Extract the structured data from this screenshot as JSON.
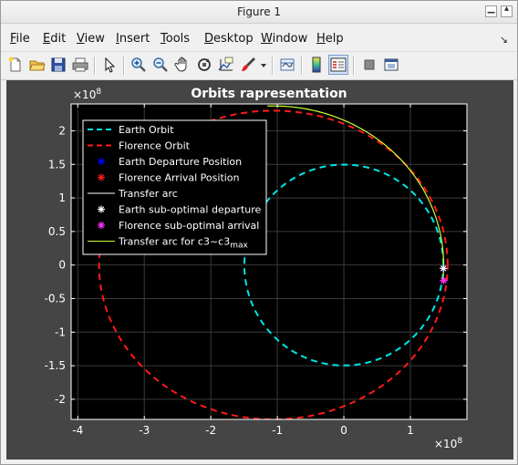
{
  "window": {
    "title": "Figure 1"
  },
  "menu": {
    "items": [
      "File",
      "Edit",
      "View",
      "Insert",
      "Tools",
      "Desktop",
      "Window",
      "Help"
    ]
  },
  "toolbar": {
    "icons": [
      "new-figure-icon",
      "open-file-icon",
      "save-icon",
      "print-icon",
      "pointer-icon",
      "zoom-in-icon",
      "zoom-out-icon",
      "pan-hand-icon",
      "rotate-3d-icon",
      "data-cursor-icon",
      "brush-icon",
      "dropdown-arrow-icon",
      "link-plot-icon",
      "colorbar-icon",
      "legend-icon",
      "hide-plot-tools-icon",
      "show-plot-tools-icon"
    ]
  },
  "colors": {
    "figure_bg": "#454545",
    "axes_bg": "#000000",
    "earth": "#00e5e5",
    "florence": "#ff1a1a",
    "transfer": "#ffffff",
    "transfer_c3max": "#ccff33"
  },
  "chart_data": {
    "type": "line",
    "title": "Orbits rapresentation",
    "xlabel": "",
    "ylabel": "",
    "x_exponent": "×10^8",
    "y_exponent": "×10^8",
    "xlim": [
      -4.1,
      1.85
    ],
    "ylim": [
      -2.3,
      2.4
    ],
    "xticks": [
      -4,
      -3,
      -2,
      -1,
      0,
      1
    ],
    "yticks": [
      -2,
      -1.5,
      -1,
      -0.5,
      0,
      0.5,
      1,
      1.5,
      2
    ],
    "grid": true,
    "legend_position": "top-left",
    "series": [
      {
        "name": "Earth Orbit",
        "style": "dashed",
        "ellipse": {
          "center": [
            0,
            0
          ],
          "a": 1.496,
          "b": 1.496
        }
      },
      {
        "name": "Florence Orbit",
        "style": "dashed",
        "ellipse": {
          "center": [
            -1.06,
            0
          ],
          "a": 2.62,
          "b": 2.3
        }
      },
      {
        "name": "Earth Departure Position",
        "marker": "*",
        "color": "#0000ff",
        "x": [
          1.496
        ],
        "y": [
          -0.05
        ]
      },
      {
        "name": "Florence Arrival Position",
        "marker": "*",
        "color": "#ff1a1a",
        "x": [
          1.5
        ],
        "y": [
          -0.23
        ]
      },
      {
        "name": "Transfer arc",
        "style": "solid"
      },
      {
        "name": "Earth sub-optimal departure",
        "marker": "*",
        "color": "#ffffff",
        "x": [
          1.496
        ],
        "y": [
          -0.05
        ]
      },
      {
        "name": "Florence sub-optimal arrival",
        "marker": "*",
        "color": "#ff33ff",
        "x": [
          1.5
        ],
        "y": [
          -0.23
        ]
      },
      {
        "name": "Transfer arc for c3~c3_max",
        "style": "solid",
        "arc": {
          "center": [
            -1.06,
            0
          ],
          "a": 2.56,
          "b": 2.37,
          "from_deg": 92,
          "to_deg": -5
        }
      }
    ]
  }
}
